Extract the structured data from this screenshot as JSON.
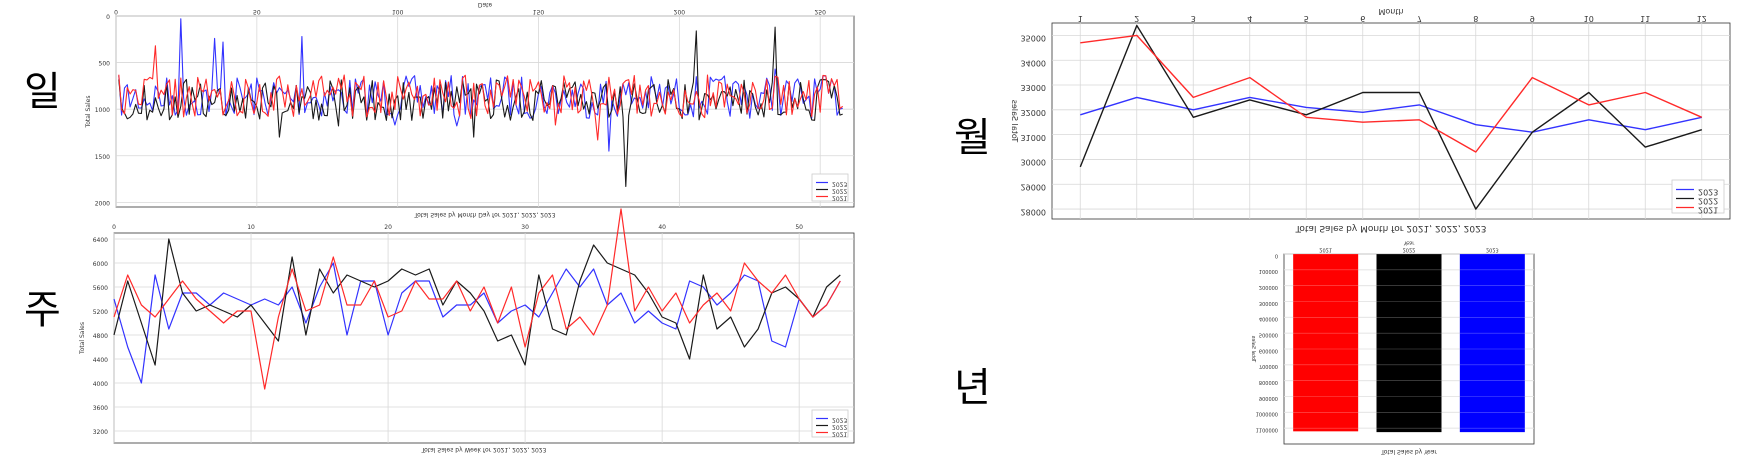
{
  "labels": {
    "daily": "일",
    "weekly": "주",
    "monthly": "월",
    "yearly": "년"
  },
  "chart_data": [
    {
      "id": "daily",
      "type": "line",
      "title": "Total Sales by Month Day for 2021, 2022, 2023",
      "xlabel": "Date",
      "ylabel": "Total Sales",
      "x_ticks": [
        0,
        50,
        100,
        150,
        200,
        250
      ],
      "xlim": [
        0,
        262
      ],
      "y_ticks": [
        0,
        500,
        1000,
        1500,
        2000
      ],
      "ylim": [
        0,
        2050
      ],
      "y_inverted": true,
      "x_axis_top": true,
      "x_axis_text_mirrored": true,
      "legend_position": "lower-right",
      "legend_text_mirrored": true,
      "grid": true,
      "series": [
        {
          "name": "2023",
          "color": "#3333ff"
        },
        {
          "name": "2022",
          "color": "#1a1a1a"
        },
        {
          "name": "2021",
          "color": "#ff2a2a"
        }
      ]
    },
    {
      "id": "weekly",
      "type": "line",
      "title": "Total Sales by Week for 2021, 2022, 2023",
      "xlabel": "",
      "ylabel": "Total Sales",
      "x_ticks": [
        0,
        10,
        20,
        30,
        40,
        50
      ],
      "xlim": [
        0,
        54
      ],
      "y_ticks": [
        3200,
        3600,
        4000,
        4400,
        4800,
        5200,
        5600,
        6000,
        6400
      ],
      "ylim": [
        3000,
        6500
      ],
      "x_axis_top": true,
      "legend_position": "lower-right",
      "legend_text_mirrored": true,
      "grid": true,
      "series": [
        {
          "name": "2023",
          "color": "#3333ff",
          "values": [
            5400,
            4600,
            4000,
            5800,
            4900,
            5500,
            5500,
            5300,
            5500,
            5400,
            5300,
            5400,
            5300,
            5600,
            5000,
            5600,
            6000,
            4800,
            5700,
            5700,
            4800,
            5500,
            5700,
            5700,
            5100,
            5300,
            5300,
            5500,
            5000,
            5200,
            5300,
            5100,
            5500,
            5900,
            5600,
            5900,
            5300,
            5500,
            5000,
            5200,
            5000,
            4900,
            5700,
            5600,
            5300,
            5500,
            5800,
            5700,
            4700,
            4600,
            5400,
            5100,
            5300,
            5700
          ]
        },
        {
          "name": "2022",
          "color": "#1a1a1a",
          "values": [
            4800,
            5700,
            5000,
            4300,
            6400,
            5500,
            5200,
            5300,
            5200,
            5100,
            5300,
            5000,
            4700,
            6100,
            4800,
            5900,
            5500,
            5800,
            5700,
            5600,
            5700,
            5900,
            5800,
            5900,
            5300,
            5700,
            5500,
            5200,
            4700,
            4800,
            4300,
            5800,
            4900,
            4800,
            5700,
            6300,
            6000,
            5900,
            5800,
            5500,
            5100,
            5000,
            4400,
            5800,
            4900,
            5100,
            4600,
            4900,
            5500,
            5600,
            5400,
            5100,
            5600,
            5800
          ]
        },
        {
          "name": "2021",
          "color": "#ff2a2a",
          "values": [
            5100,
            5800,
            5300,
            5100,
            5400,
            5700,
            5400,
            5200,
            5000,
            5200,
            5200,
            3900,
            5100,
            5900,
            5200,
            5300,
            6100,
            5300,
            5300,
            5700,
            5100,
            5200,
            5700,
            5400,
            5400,
            5700,
            5200,
            5600,
            5000,
            5600,
            4600,
            5500,
            5800,
            4900,
            5100,
            4800,
            5300,
            6900,
            5200,
            5600,
            5200,
            5500,
            5000,
            5300,
            5500,
            5200,
            6000,
            5700,
            5500,
            5800,
            5400,
            5100,
            5300,
            5700
          ]
        }
      ]
    },
    {
      "id": "monthly",
      "type": "line",
      "title": "Total Sales by Month for 2021, 2022, 2023",
      "xlabel": "Month",
      "ylabel": "Total Sales",
      "categories": [
        "1",
        "2",
        "3",
        "4",
        "5",
        "6",
        "7",
        "8",
        "9",
        "10",
        "11",
        "12"
      ],
      "y_ticks": [
        28000,
        29000,
        30000,
        31000,
        32000,
        33000,
        34000,
        35000
      ],
      "ylim": [
        27600,
        35500
      ],
      "x_axis_top": true,
      "text_mirrored": true,
      "legend_position": "lower-right",
      "grid": true,
      "series": [
        {
          "name": "2023",
          "color": "#3333ff",
          "values": [
            31800,
            32500,
            32000,
            32500,
            32100,
            31900,
            32200,
            31400,
            31100,
            31600,
            31200,
            31700
          ]
        },
        {
          "name": "2022",
          "color": "#1a1a1a",
          "values": [
            29700,
            35400,
            31700,
            32400,
            31800,
            32700,
            32700,
            28000,
            31100,
            32700,
            30500,
            31200
          ]
        },
        {
          "name": "2021",
          "color": "#ff2a2a",
          "values": [
            34700,
            35000,
            32500,
            33300,
            31700,
            31500,
            31600,
            30300,
            33300,
            32200,
            32700,
            31700
          ]
        }
      ]
    },
    {
      "id": "yearly",
      "type": "bar",
      "title": "Total Sales by Year",
      "xlabel": "Year",
      "ylabel": "Total Sales",
      "categories": [
        "2021",
        "2022",
        "2023"
      ],
      "values": [
        1120000,
        1125000,
        1125000
      ],
      "colors": [
        "#ff0000",
        "#000000",
        "#0000ff"
      ],
      "y_ticks": [
        0,
        100000,
        200000,
        300000,
        400000,
        500000,
        600000,
        700000,
        800000,
        900000,
        1000000,
        1100000
      ],
      "ylim": [
        0,
        1200000
      ],
      "y_inverted": true,
      "x_axis_top": true,
      "grid": true
    }
  ]
}
